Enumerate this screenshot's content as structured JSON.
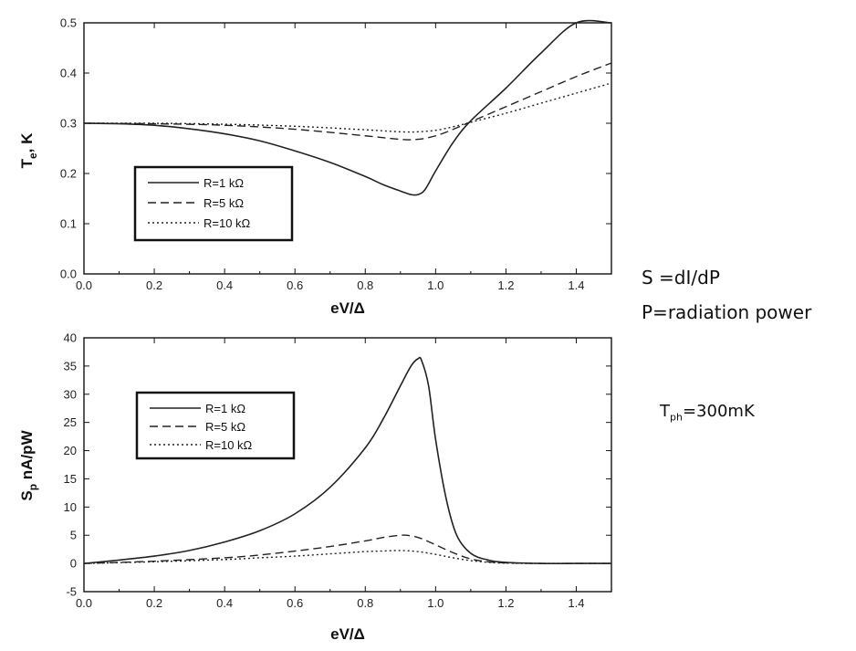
{
  "notes": {
    "line1": "S =dI/dP",
    "line2": "P=radiation power",
    "tph_symbol": "T",
    "tph_sub": "ph",
    "tph_value": "=300mK"
  },
  "chart_data": [
    {
      "type": "line",
      "title": "",
      "xlabel": "eV/Δ",
      "ylabel": "T",
      "ylabel_sub": "e",
      "ylabel_rest": ", K",
      "xlim": [
        0.0,
        1.5
      ],
      "ylim": [
        0.0,
        0.5
      ],
      "xticks": [
        "0.0",
        "0.2",
        "0.4",
        "0.6",
        "0.8",
        "1.0",
        "1.2",
        "1.4"
      ],
      "yticks": [
        "0.0",
        "0.1",
        "0.2",
        "0.3",
        "0.4",
        "0.5"
      ],
      "legend_position": "left",
      "series": [
        {
          "name": "R=1  kΩ",
          "style": "solid",
          "x": [
            0.0,
            0.1,
            0.2,
            0.3,
            0.4,
            0.5,
            0.6,
            0.7,
            0.8,
            0.85,
            0.9,
            0.93,
            0.95,
            0.97,
            1.0,
            1.05,
            1.1,
            1.2,
            1.3,
            1.4,
            1.5
          ],
          "y": [
            0.3,
            0.299,
            0.296,
            0.289,
            0.279,
            0.265,
            0.245,
            0.222,
            0.194,
            0.178,
            0.165,
            0.158,
            0.158,
            0.168,
            0.205,
            0.262,
            0.305,
            0.37,
            0.44,
            0.5,
            0.5
          ]
        },
        {
          "name": "R=5  kΩ",
          "style": "dashed",
          "x": [
            0.0,
            0.2,
            0.4,
            0.6,
            0.8,
            0.9,
            0.95,
            1.0,
            1.05,
            1.1,
            1.2,
            1.3,
            1.4,
            1.5
          ],
          "y": [
            0.3,
            0.299,
            0.296,
            0.288,
            0.275,
            0.268,
            0.268,
            0.275,
            0.288,
            0.303,
            0.333,
            0.363,
            0.393,
            0.42
          ]
        },
        {
          "name": "R=10  kΩ",
          "style": "dotted",
          "x": [
            0.0,
            0.2,
            0.4,
            0.6,
            0.8,
            0.9,
            0.95,
            1.0,
            1.05,
            1.1,
            1.2,
            1.3,
            1.4,
            1.5
          ],
          "y": [
            0.3,
            0.3,
            0.298,
            0.294,
            0.287,
            0.283,
            0.283,
            0.286,
            0.293,
            0.302,
            0.32,
            0.34,
            0.36,
            0.38
          ]
        }
      ]
    },
    {
      "type": "line",
      "title": "",
      "xlabel": "eV/Δ",
      "ylabel": "S",
      "ylabel_sub": "p",
      "ylabel_rest": " nA/pW",
      "xlim": [
        0.0,
        1.5
      ],
      "ylim": [
        -5,
        40
      ],
      "xticks": [
        "0.0",
        "0.2",
        "0.4",
        "0.6",
        "0.8",
        "1.0",
        "1.2",
        "1.4"
      ],
      "yticks": [
        "-5",
        "0",
        "5",
        "10",
        "15",
        "20",
        "25",
        "30",
        "35",
        "40"
      ],
      "legend_position": "top-left",
      "series": [
        {
          "name": "R=1  kΩ",
          "style": "solid",
          "x": [
            0.0,
            0.1,
            0.2,
            0.3,
            0.4,
            0.5,
            0.6,
            0.7,
            0.8,
            0.85,
            0.9,
            0.93,
            0.95,
            0.96,
            0.98,
            1.0,
            1.03,
            1.06,
            1.1,
            1.15,
            1.2,
            1.3,
            1.4,
            1.5
          ],
          "y": [
            0.0,
            0.6,
            1.3,
            2.3,
            3.8,
            5.8,
            8.8,
            13.5,
            20.5,
            25.5,
            31.5,
            35.0,
            36.3,
            36.0,
            31.5,
            22.0,
            11.5,
            5.0,
            1.8,
            0.6,
            0.2,
            0.0,
            0.0,
            0.0
          ]
        },
        {
          "name": "R=5  kΩ",
          "style": "dashed",
          "x": [
            0.0,
            0.2,
            0.4,
            0.5,
            0.6,
            0.7,
            0.8,
            0.85,
            0.9,
            0.93,
            0.96,
            1.0,
            1.05,
            1.1,
            1.15,
            1.2,
            1.3,
            1.4,
            1.5
          ],
          "y": [
            0.0,
            0.4,
            1.0,
            1.5,
            2.2,
            3.0,
            4.0,
            4.6,
            5.0,
            4.9,
            4.4,
            3.3,
            1.9,
            0.8,
            0.3,
            0.1,
            0.0,
            0.0,
            0.0
          ]
        },
        {
          "name": "R=10  kΩ",
          "style": "dotted",
          "x": [
            0.0,
            0.2,
            0.4,
            0.5,
            0.6,
            0.7,
            0.8,
            0.85,
            0.9,
            0.95,
            1.0,
            1.05,
            1.1,
            1.15,
            1.2,
            1.3,
            1.4,
            1.5
          ],
          "y": [
            0.0,
            0.3,
            0.7,
            1.0,
            1.3,
            1.7,
            2.1,
            2.2,
            2.3,
            2.1,
            1.6,
            1.0,
            0.5,
            0.2,
            0.05,
            0.0,
            0.0,
            0.0
          ]
        }
      ]
    }
  ]
}
